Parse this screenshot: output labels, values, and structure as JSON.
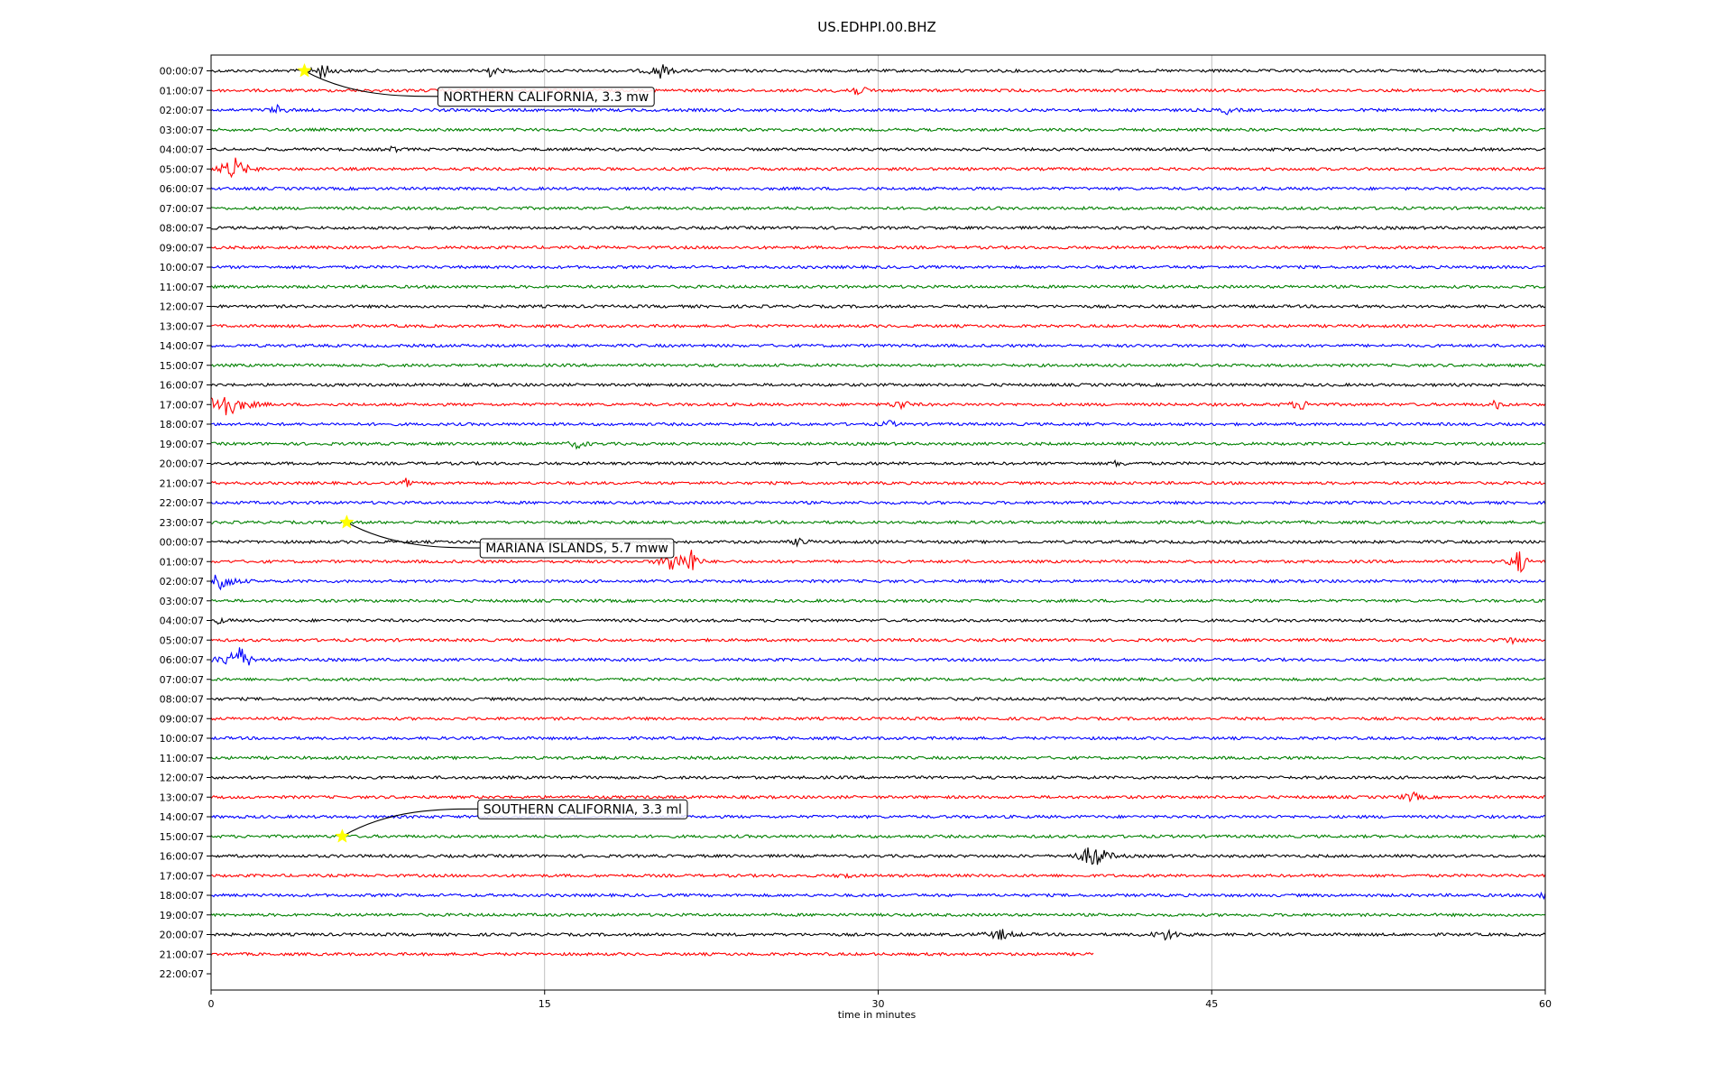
{
  "chart_data": {
    "type": "line",
    "title": "US.EDHPI.00.BHZ",
    "xlabel": "time in minutes",
    "ylabel": "",
    "xlim": [
      0,
      60
    ],
    "x_ticks": [
      "0",
      "15",
      "30",
      "45",
      "60"
    ],
    "grid": "vertical",
    "trace_colors": [
      "#000000",
      "#ff0000",
      "#0000ff",
      "#008000"
    ],
    "row_labels": [
      "00:00:07",
      "01:00:07",
      "02:00:07",
      "03:00:07",
      "04:00:07",
      "05:00:07",
      "06:00:07",
      "07:00:07",
      "08:00:07",
      "09:00:07",
      "10:00:07",
      "11:00:07",
      "12:00:07",
      "13:00:07",
      "14:00:07",
      "15:00:07",
      "16:00:07",
      "17:00:07",
      "18:00:07",
      "19:00:07",
      "20:00:07",
      "21:00:07",
      "22:00:07",
      "23:00:07",
      "00:00:07",
      "01:00:07",
      "02:00:07",
      "03:00:07",
      "04:00:07",
      "05:00:07",
      "06:00:07",
      "07:00:07",
      "08:00:07",
      "09:00:07",
      "10:00:07",
      "11:00:07",
      "12:00:07",
      "13:00:07",
      "14:00:07",
      "15:00:07",
      "16:00:07",
      "17:00:07",
      "18:00:07",
      "19:00:07",
      "20:00:07",
      "21:00:07",
      "22:00:07"
    ],
    "last_trace_end_minute": 39.7,
    "bursts": [
      {
        "row": 0,
        "minute": 5.0,
        "amp": 9,
        "width": 0.6
      },
      {
        "row": 0,
        "minute": 12.5,
        "amp": 7,
        "width": 0.5
      },
      {
        "row": 0,
        "minute": 20.2,
        "amp": 9,
        "width": 0.6
      },
      {
        "row": 1,
        "minute": 29.0,
        "amp": 5,
        "width": 0.8
      },
      {
        "row": 2,
        "minute": 3.0,
        "amp": 5,
        "width": 0.5
      },
      {
        "row": 2,
        "minute": 45.7,
        "amp": 4,
        "width": 0.4
      },
      {
        "row": 4,
        "minute": 8.2,
        "amp": 4,
        "width": 0.3
      },
      {
        "row": 5,
        "minute": 1.0,
        "amp": 14,
        "width": 0.8
      },
      {
        "row": 17,
        "minute": 0.5,
        "amp": 18,
        "width": 1.2
      },
      {
        "row": 17,
        "minute": 31.0,
        "amp": 6,
        "width": 0.5
      },
      {
        "row": 17,
        "minute": 49.0,
        "amp": 6,
        "width": 0.6
      },
      {
        "row": 17,
        "minute": 57.8,
        "amp": 6,
        "width": 0.3
      },
      {
        "row": 18,
        "minute": 30.5,
        "amp": 4,
        "width": 0.4
      },
      {
        "row": 19,
        "minute": 16.5,
        "amp": 5,
        "width": 0.5
      },
      {
        "row": 20,
        "minute": 40.8,
        "amp": 5,
        "width": 0.3
      },
      {
        "row": 21,
        "minute": 8.8,
        "amp": 6,
        "width": 0.2
      },
      {
        "row": 24,
        "minute": 26.5,
        "amp": 6,
        "width": 0.4
      },
      {
        "row": 25,
        "minute": 20.8,
        "amp": 16,
        "width": 0.6
      },
      {
        "row": 25,
        "minute": 21.6,
        "amp": 16,
        "width": 0.4
      },
      {
        "row": 25,
        "minute": 58.8,
        "amp": 18,
        "width": 0.4
      },
      {
        "row": 26,
        "minute": 0.4,
        "amp": 12,
        "width": 0.8
      },
      {
        "row": 28,
        "minute": 0.3,
        "amp": 4,
        "width": 0.4
      },
      {
        "row": 29,
        "minute": 58.5,
        "amp": 4,
        "width": 0.6
      },
      {
        "row": 30,
        "minute": 1.2,
        "amp": 18,
        "width": 0.8
      },
      {
        "row": 37,
        "minute": 54.0,
        "amp": 6,
        "width": 0.5
      },
      {
        "row": 40,
        "minute": 39.7,
        "amp": 16,
        "width": 0.8
      },
      {
        "row": 41,
        "minute": 28.5,
        "amp": 5,
        "width": 0.3
      },
      {
        "row": 42,
        "minute": 60.0,
        "amp": 5,
        "width": 0.4
      },
      {
        "row": 44,
        "minute": 35.5,
        "amp": 6,
        "width": 0.8
      },
      {
        "row": 44,
        "minute": 43.0,
        "amp": 6,
        "width": 0.8
      }
    ],
    "annotations": [
      {
        "text": "NORTHERN CALIFORNIA, 3.3 mw",
        "row": 0,
        "minute": 4.2,
        "label_row": 1.3,
        "label_minute": 10.2
      },
      {
        "text": "MARIANA ISLANDS, 5.7 mww",
        "row": 23,
        "minute": 6.1,
        "label_row": 24.3,
        "label_minute": 12.1
      },
      {
        "text": "SOUTHERN CALIFORNIA, 3.3 ml",
        "row": 39,
        "minute": 5.9,
        "label_row": 37.6,
        "label_minute": 12.0
      }
    ],
    "marker_color": "#ffff00"
  }
}
